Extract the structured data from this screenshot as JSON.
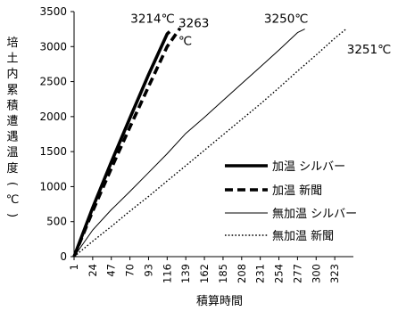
{
  "chart_data": {
    "type": "line",
    "title": "",
    "xlabel": "積算時間",
    "ylabel_chars": [
      "培",
      "土",
      "内",
      "累",
      "積",
      "遭",
      "遇",
      "温",
      "度",
      "(",
      "℃",
      ")"
    ],
    "x_ticks": [
      "1",
      "24",
      "47",
      "70",
      "93",
      "116",
      "139",
      "162",
      "185",
      "208",
      "231",
      "254",
      "277",
      "300",
      "323"
    ],
    "y_ticks": [
      "0",
      "500",
      "1000",
      "1500",
      "2000",
      "2500",
      "3000",
      "3500"
    ],
    "xlim": [
      1,
      346
    ],
    "ylim": [
      0,
      3500
    ],
    "grid": false,
    "legend_position": "right",
    "series": [
      {
        "name": "加温 シルバー",
        "style": "thick-solid",
        "x": [
          1,
          24,
          47,
          70,
          93,
          116,
          119
        ],
        "y": [
          0,
          700,
          1350,
          1980,
          2600,
          3180,
          3214
        ]
      },
      {
        "name": "加温 新聞",
        "style": "thick-dashed",
        "x": [
          1,
          24,
          47,
          70,
          93,
          116,
          132
        ],
        "y": [
          0,
          650,
          1260,
          1850,
          2430,
          3000,
          3263
        ]
      },
      {
        "name": "無加温 シルバー",
        "style": "thin-solid",
        "x": [
          1,
          24,
          47,
          70,
          93,
          116,
          139,
          162,
          185,
          208,
          231,
          254,
          277,
          286
        ],
        "y": [
          0,
          380,
          670,
          930,
          1200,
          1470,
          1760,
          1990,
          2230,
          2470,
          2710,
          2950,
          3200,
          3250
        ]
      },
      {
        "name": "無加温 新聞",
        "style": "dotted",
        "x": [
          1,
          24,
          47,
          70,
          93,
          116,
          139,
          162,
          185,
          208,
          231,
          254,
          277,
          300,
          323,
          337
        ],
        "y": [
          0,
          220,
          430,
          650,
          860,
          1080,
          1300,
          1520,
          1740,
          1960,
          2180,
          2410,
          2650,
          2880,
          3120,
          3251
        ]
      }
    ],
    "annotations": [
      {
        "lines": [
          "3214℃"
        ],
        "x": 98,
        "y": 3340
      },
      {
        "lines": [
          "3263",
          "℃"
        ],
        "x": 130,
        "y": 3280
      },
      {
        "lines": [
          "3250℃"
        ],
        "x": 263,
        "y": 3340
      },
      {
        "lines": [
          "3251℃"
        ],
        "x": 338,
        "y": 2900
      }
    ]
  }
}
